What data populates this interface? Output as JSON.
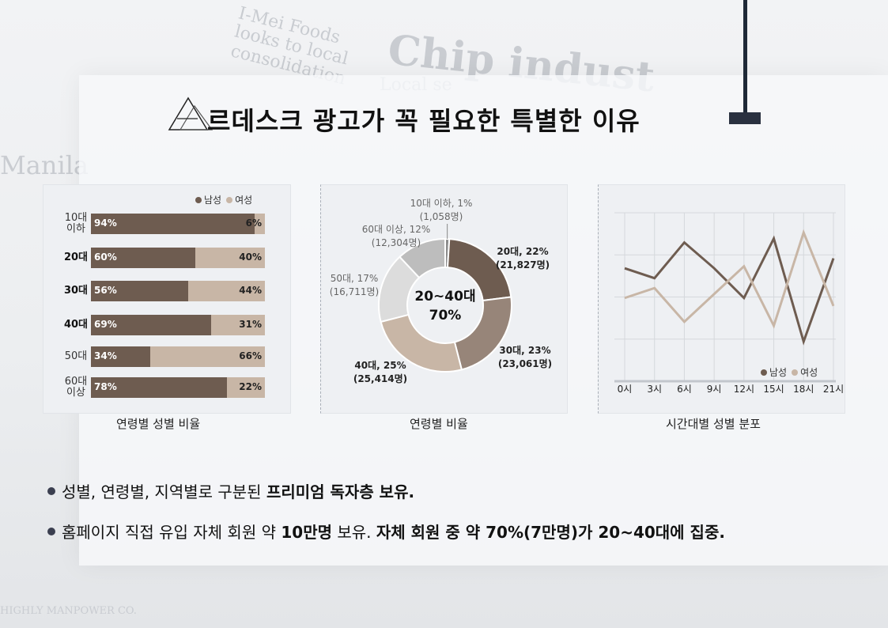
{
  "title": "르데스크 광고가 꼭 필요한 특별한 이유",
  "colors": {
    "male": "#6e5c50",
    "female": "#c8b6a6",
    "accent": "#2a3140"
  },
  "background_text": [
    "I-Mei Foods",
    "looks to local",
    "consolidation",
    "Chip indust",
    "Manila",
    "HIGHLY MANPOWER CO.",
    "Local se"
  ],
  "charts": [
    {
      "caption": "연령별 성별 비율",
      "legend": [
        "남성",
        "여성"
      ],
      "chart_data": {
        "type": "bar",
        "stacked": true,
        "orientation": "horizontal",
        "categories": [
          "10대 이하",
          "20대",
          "30대",
          "40대",
          "50대",
          "60대 이상"
        ],
        "series": [
          {
            "name": "남성",
            "values": [
              94,
              60,
              56,
              69,
              34,
              78
            ]
          },
          {
            "name": "여성",
            "values": [
              6,
              40,
              44,
              31,
              66,
              22
            ]
          }
        ],
        "value_labels": {
          "male": [
            "94%",
            "60%",
            "56%",
            "69%",
            "34%",
            "78%"
          ],
          "female": [
            "6%",
            "40%",
            "44%",
            "31%",
            "66%",
            "22%"
          ]
        }
      }
    },
    {
      "caption": "연령별 비율",
      "chart_data": {
        "type": "pie",
        "donut": true,
        "center_label": [
          "20~40대",
          "70%"
        ],
        "slices": [
          {
            "label": "10대 이하, 1%",
            "sub": "(1,058명)",
            "value": 1,
            "color": "#8c8c8c"
          },
          {
            "label": "20대, 22%",
            "sub": "(21,827명)",
            "value": 22,
            "color": "#6e5c50"
          },
          {
            "label": "30대, 23%",
            "sub": "(23,061명)",
            "value": 23,
            "color": "#978579"
          },
          {
            "label": "40대, 25%",
            "sub": "(25,414명)",
            "value": 25,
            "color": "#c8b6a6"
          },
          {
            "label": "50대, 17%",
            "sub": "(16,711명)",
            "value": 17,
            "color": "#dcdcdc"
          },
          {
            "label": "60대 이상, 12%",
            "sub": "(12,304명)",
            "value": 12,
            "color": "#bdbdbd"
          }
        ]
      }
    },
    {
      "caption": "시간대별 성별 분포",
      "legend": [
        "남성",
        "여성"
      ],
      "chart_data": {
        "type": "line",
        "x": [
          "0시",
          "3시",
          "6시",
          "9시",
          "12시",
          "15시",
          "18시",
          "21시"
        ],
        "series": [
          {
            "name": "남성",
            "values": [
              57,
              52,
              70,
              57,
              42,
              72,
              20,
              62
            ]
          },
          {
            "name": "여성",
            "values": [
              42,
              47,
              30,
              44,
              58,
              28,
              75,
              38
            ]
          }
        ],
        "ylim": [
          0,
          85
        ],
        "grid": true,
        "legend_position": "bottom-right"
      }
    }
  ],
  "bullets": [
    {
      "parts": [
        {
          "text": "성별, 연령별, 지역별로 구분된 ",
          "bold": false
        },
        {
          "text": "프리미엄 독자층 보유.",
          "bold": true
        }
      ]
    },
    {
      "parts": [
        {
          "text": "홈페이지 직접 유입 자체 회원 약 ",
          "bold": false
        },
        {
          "text": "10만명",
          "bold": true
        },
        {
          "text": " 보유. ",
          "bold": false
        },
        {
          "text": "자체 회원 중 약 70%(7만명)가 20~40대에 집중.",
          "bold": true
        }
      ]
    }
  ]
}
